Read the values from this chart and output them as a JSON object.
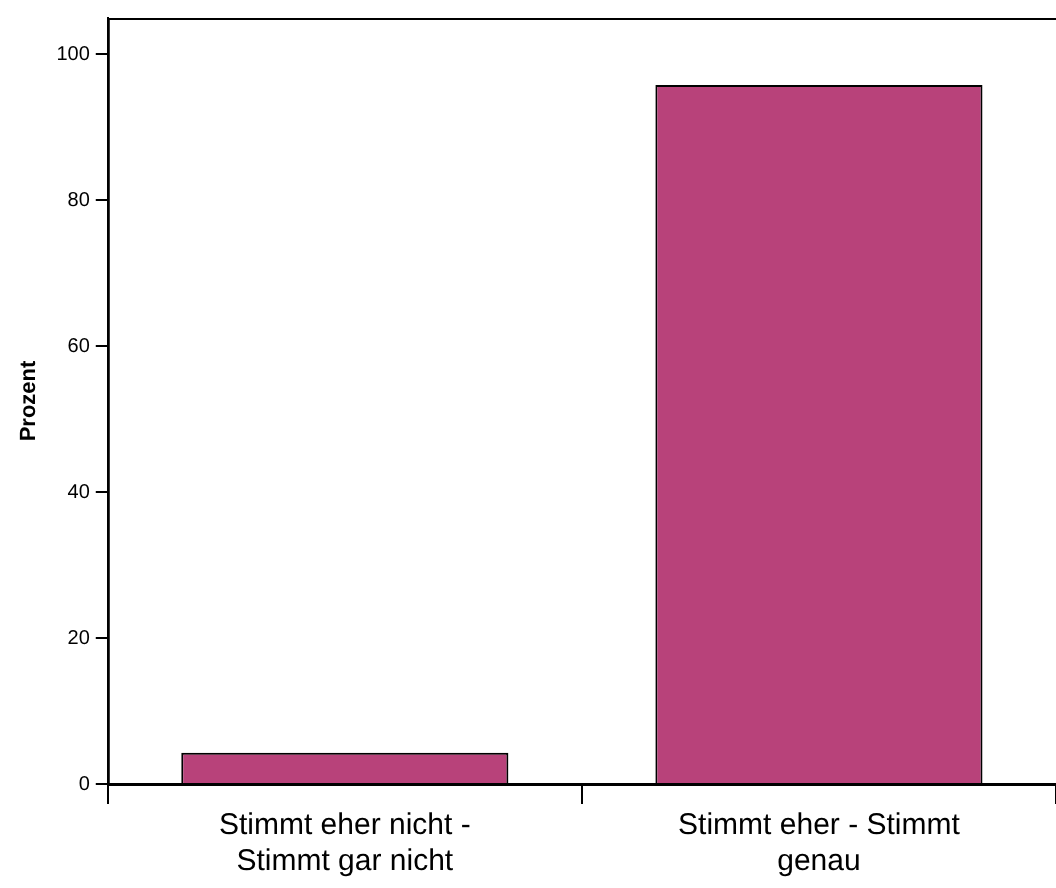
{
  "chart_data": {
    "type": "bar",
    "ylabel": "Prozent",
    "categories": [
      "Stimmt eher nicht - Stimmt gar nicht",
      "Stimmt eher - Stimmt genau"
    ],
    "values": [
      4.3,
      95.8
    ],
    "color": "#b8427a",
    "ylim": [
      0,
      105
    ],
    "yticks": [
      0,
      20,
      40,
      60,
      80,
      100
    ],
    "grid": false,
    "legend": false
  }
}
